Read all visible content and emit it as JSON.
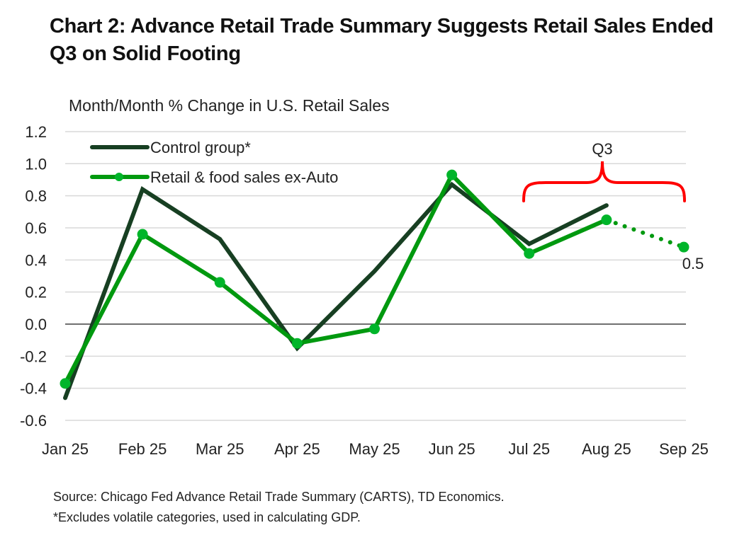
{
  "title": "Chart 2: Advance Retail Trade Summary Suggests Retail Sales Ended Q3 on Solid Footing",
  "subtitle": "Month/Month % Change in U.S. Retail Sales",
  "footer": {
    "source": "Source: Chicago Fed Advance Retail Trade Summary (CARTS), TD Economics.",
    "note": "*Excludes volatile categories, used in calculating GDP."
  },
  "colors": {
    "control": "#173f22",
    "retail": "#00990f",
    "retail_marker": "#00b52a",
    "bracket": "#ff0000",
    "grid": "#d9d9d9",
    "zero_line": "#404040"
  },
  "chart_data": {
    "type": "line",
    "title": "Chart 2: Advance Retail Trade Summary Suggests Retail Sales Ended Q3 on Solid Footing",
    "ylabel": "Month/Month % Change in U.S. Retail Sales",
    "xlabel": "",
    "categories": [
      "Jan 25",
      "Feb 25",
      "Mar 25",
      "Apr 25",
      "May 25",
      "Jun 25",
      "Jul 25",
      "Aug 25",
      "Sep 25"
    ],
    "ylim": [
      -0.6,
      1.2
    ],
    "yticks": [
      "1.2",
      "1.0",
      "0.8",
      "0.6",
      "0.4",
      "0.2",
      "0.0",
      "-0.2",
      "-0.4",
      "-0.6"
    ],
    "ytick_values": [
      1.2,
      1.0,
      0.8,
      0.6,
      0.4,
      0.2,
      0.0,
      -0.2,
      -0.4,
      -0.6
    ],
    "grid": true,
    "legend_position": "top-left",
    "series": [
      {
        "name": "Control group*",
        "values": [
          -0.46,
          0.84,
          0.53,
          -0.15,
          0.33,
          0.87,
          0.5,
          0.74,
          null
        ],
        "markers": false
      },
      {
        "name": "Retail & food sales ex-Auto",
        "values": [
          -0.37,
          0.56,
          0.26,
          -0.12,
          -0.03,
          0.93,
          0.44,
          0.65,
          0.48
        ],
        "markers": true,
        "dotted_from_index": 7
      }
    ],
    "annotations": [
      {
        "type": "bracket",
        "label": "Q3",
        "from": "Jul 25",
        "to": "Sep 25"
      },
      {
        "type": "data-label",
        "label": "0.5",
        "category": "Sep 25",
        "series": "Retail & food sales ex-Auto"
      }
    ]
  }
}
